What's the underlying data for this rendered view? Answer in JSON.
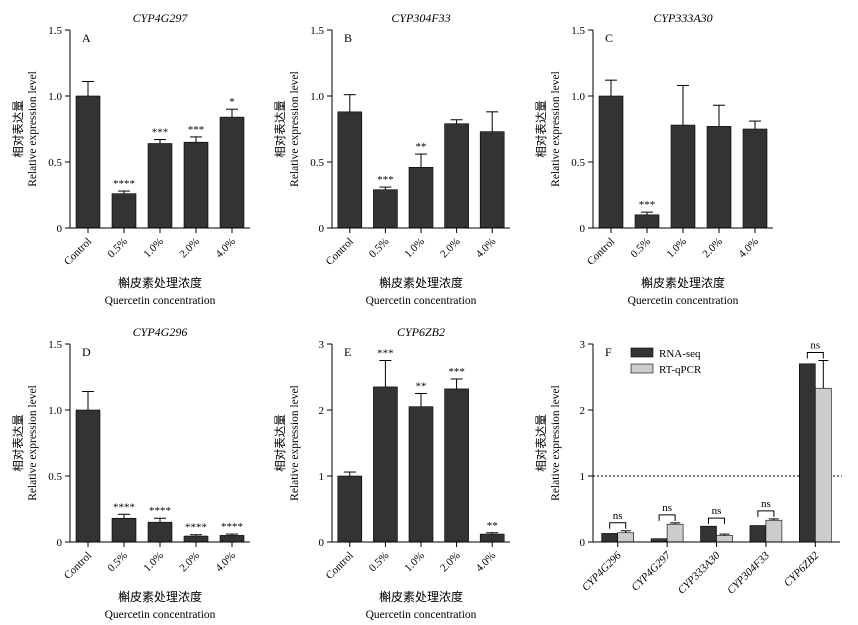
{
  "colors": {
    "dark": "#333333",
    "light": "#cccccc",
    "axis": "#000000"
  },
  "panels": [
    {
      "label": "A",
      "title": "CYP4G297",
      "ylabel_cn": "相对表达量",
      "ylabel_en": "Relative expression level",
      "xlabel_cn": "槲皮素处理浓度",
      "xlabel_en": "Quercetin concentration",
      "chart_data": {
        "type": "bar",
        "categories": [
          "Control",
          "0.5%",
          "1.0%",
          "2.0%",
          "4.0%"
        ],
        "values": [
          1.0,
          0.26,
          0.64,
          0.65,
          0.84
        ],
        "errors": [
          0.11,
          0.02,
          0.03,
          0.04,
          0.06
        ],
        "significance": [
          "",
          "****",
          "***",
          "***",
          "*"
        ],
        "ylim": [
          0,
          1.5
        ],
        "yticks": [
          "0",
          "0.5",
          "1.0",
          "1.5"
        ]
      }
    },
    {
      "label": "B",
      "title": "CYP304F33",
      "ylabel_cn": "相对表达量",
      "ylabel_en": "Relative expression level",
      "xlabel_cn": "槲皮素处理浓度",
      "xlabel_en": "Quercetin concentration",
      "chart_data": {
        "type": "bar",
        "categories": [
          "Control",
          "0.5%",
          "1.0%",
          "2.0%",
          "4.0%"
        ],
        "values": [
          0.88,
          0.29,
          0.46,
          0.79,
          0.73
        ],
        "errors": [
          0.13,
          0.02,
          0.1,
          0.03,
          0.15
        ],
        "significance": [
          "",
          "***",
          "**",
          "",
          ""
        ],
        "ylim": [
          0,
          1.5
        ],
        "yticks": [
          "0",
          "0.5",
          "1.0",
          "1.5"
        ]
      }
    },
    {
      "label": "C",
      "title": "CYP333A30",
      "ylabel_cn": "相对表达量",
      "ylabel_en": "Relative expression level",
      "xlabel_cn": "槲皮素处理浓度",
      "xlabel_en": "Quercetin concentration",
      "chart_data": {
        "type": "bar",
        "categories": [
          "Control",
          "0.5%",
          "1.0%",
          "2.0%",
          "4.0%"
        ],
        "values": [
          1.0,
          0.1,
          0.78,
          0.77,
          0.75
        ],
        "errors": [
          0.12,
          0.02,
          0.3,
          0.16,
          0.06
        ],
        "significance": [
          "",
          "***",
          "",
          "",
          ""
        ],
        "ylim": [
          0,
          1.5
        ],
        "yticks": [
          "0",
          "0.5",
          "1.0",
          "1.5"
        ]
      }
    },
    {
      "label": "D",
      "title": "CYP4G296",
      "ylabel_cn": "相对表达量",
      "ylabel_en": "Relative expression level",
      "xlabel_cn": "槲皮素处理浓度",
      "xlabel_en": "Quercetin concentration",
      "chart_data": {
        "type": "bar",
        "categories": [
          "Control",
          "0.5%",
          "1.0%",
          "2.0%",
          "4.0%"
        ],
        "values": [
          1.0,
          0.18,
          0.15,
          0.045,
          0.05
        ],
        "errors": [
          0.14,
          0.03,
          0.03,
          0.01,
          0.01
        ],
        "significance": [
          "",
          "****",
          "****",
          "****",
          "****"
        ],
        "ylim": [
          0,
          1.5
        ],
        "yticks": [
          "0",
          "0.5",
          "1.0",
          "1.5"
        ]
      }
    },
    {
      "label": "E",
      "title": "CYP6ZB2",
      "ylabel_cn": "相对表达量",
      "ylabel_en": "Relative expression level",
      "xlabel_cn": "槲皮素处理浓度",
      "xlabel_en": "Quercetin concentration",
      "chart_data": {
        "type": "bar",
        "categories": [
          "Control",
          "0.5%",
          "1.0%",
          "2.0%",
          "4.0%"
        ],
        "values": [
          1.0,
          2.35,
          2.05,
          2.32,
          0.12
        ],
        "errors": [
          0.06,
          0.4,
          0.2,
          0.15,
          0.02
        ],
        "significance": [
          "",
          "***",
          "**",
          "***",
          "**"
        ],
        "ylim": [
          0,
          3
        ],
        "yticks": [
          "0",
          "1",
          "2",
          "3"
        ]
      }
    },
    {
      "label": "F",
      "title": "",
      "ylabel_cn": "相对表达量",
      "ylabel_en": "Relative expression level",
      "xlabel_cn": "",
      "xlabel_en": "",
      "chart_data": {
        "type": "bar",
        "categories": [
          "CYP4G296",
          "CYP4G297",
          "CYP333A30",
          "CYP304F33",
          "CYP6ZB2"
        ],
        "series": [
          {
            "name": "RNA-seq",
            "values": [
              0.13,
              0.05,
              0.24,
              0.25,
              2.7
            ],
            "errors": [
              0,
              0,
              0,
              0,
              0
            ]
          },
          {
            "name": "RT-qPCR",
            "values": [
              0.14,
              0.27,
              0.1,
              0.33,
              2.33
            ],
            "errors": [
              0.03,
              0.02,
              0.02,
              0.02,
              0.42
            ]
          }
        ],
        "significance": [
          "ns",
          "ns",
          "ns",
          "ns",
          "ns"
        ],
        "reference_line": 1,
        "ylim": [
          0,
          3
        ],
        "yticks": [
          "0",
          "1",
          "2",
          "3"
        ]
      }
    }
  ]
}
